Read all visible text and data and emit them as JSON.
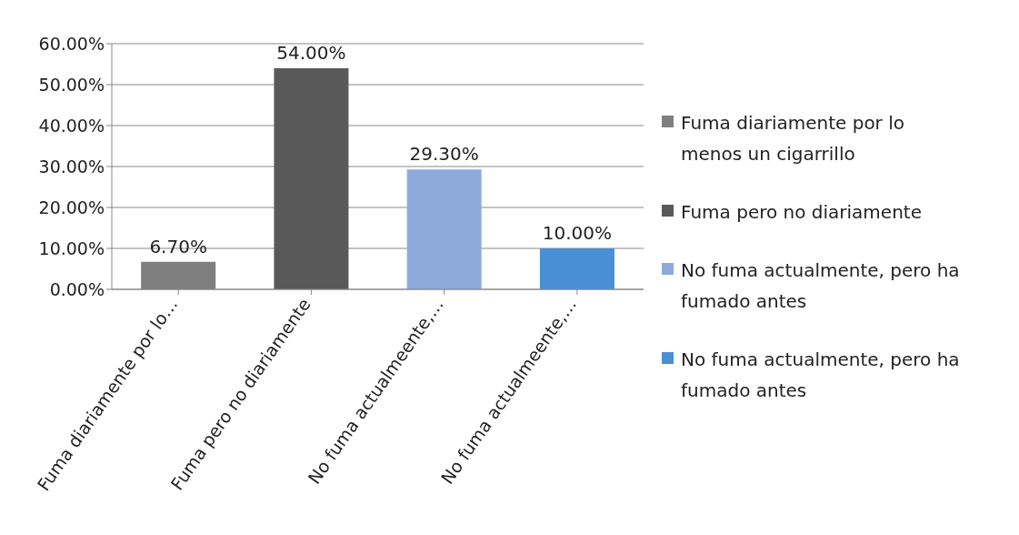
{
  "chart_data": {
    "type": "bar",
    "categories": [
      "Fuma diariamente por lo…",
      "Fuma pero no diariamente",
      "No fuma actualmeente,…",
      "No fuma actualmeente,…"
    ],
    "series": [
      {
        "name": "Fuma diariamente por lo menos un cigarrillo",
        "color": "#7f7f7f",
        "values": [
          6.7,
          null,
          null,
          null
        ],
        "value_labels": [
          "6.70%",
          null,
          null,
          null
        ]
      },
      {
        "name": "Fuma pero no diariamente",
        "color": "#595959",
        "values": [
          null,
          54,
          null,
          null
        ],
        "value_labels": [
          null,
          "54.00%",
          null,
          null
        ]
      },
      {
        "name": "No fuma actualmente, pero ha fumado antes",
        "color": "#8eaadb",
        "values": [
          null,
          null,
          29.3,
          null
        ],
        "value_labels": [
          null,
          null,
          "29.30%",
          null
        ]
      },
      {
        "name": "No fuma actualmente, pero ha fumado antes",
        "color": "#4a8fd6",
        "values": [
          null,
          null,
          null,
          10
        ],
        "value_labels": [
          null,
          null,
          null,
          "10.00%"
        ]
      }
    ],
    "stacked": true,
    "ylim": [
      0,
      60
    ],
    "yticks": [
      {
        "value": 0,
        "label": "0.00%"
      },
      {
        "value": 10,
        "label": "10.00%"
      },
      {
        "value": 20,
        "label": "20.00%"
      },
      {
        "value": 30,
        "label": "30.00%"
      },
      {
        "value": 40,
        "label": "40.00%"
      },
      {
        "value": 50,
        "label": "50.00%"
      },
      {
        "value": 60,
        "label": "60.00%"
      }
    ],
    "grid": "y",
    "legend": "right"
  }
}
